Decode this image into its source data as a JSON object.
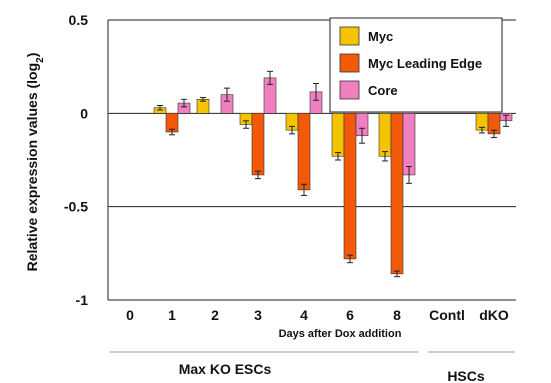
{
  "chart_data": {
    "type": "bar",
    "ylabel": "Relative expression values (log",
    "ylabel_sub": "2",
    "ylabel_close": ")",
    "xlabel": "Days after Dox addition",
    "ylim": [
      -1,
      0.5
    ],
    "yticks": [
      "0.5",
      "0",
      "-0.5",
      "-1"
    ],
    "ytick_values": [
      0.5,
      0,
      -0.5,
      -1
    ],
    "categories": [
      "0",
      "1",
      "2",
      "3",
      "4",
      "6",
      "8",
      "Contl",
      "dKO"
    ],
    "groups": [
      {
        "label": "Max KO ESCs"
      },
      {
        "label": "HSCs"
      }
    ],
    "legend_position": "top-right",
    "series": [
      {
        "name": "Myc",
        "color": "#f5c400",
        "values": [
          0,
          0.03,
          0.075,
          -0.06,
          -0.09,
          -0.23,
          -0.23,
          0,
          -0.09
        ],
        "errors": [
          0,
          0.012,
          0.01,
          0.02,
          0.02,
          0.02,
          0.025,
          0,
          0.015
        ]
      },
      {
        "name": "Myc Leading Edge",
        "color": "#f25a0a",
        "values": [
          0,
          -0.1,
          0,
          -0.33,
          -0.41,
          -0.78,
          -0.86,
          0,
          -0.11
        ],
        "errors": [
          0,
          0.015,
          0.03,
          0.02,
          0.03,
          0.02,
          0.015,
          0,
          0.02
        ]
      },
      {
        "name": "Core",
        "color": "#f07fc0",
        "values": [
          0,
          0.055,
          0.1,
          0.19,
          0.115,
          -0.12,
          -0.33,
          0,
          -0.04
        ],
        "errors": [
          0,
          0.02,
          0.035,
          0.035,
          0.045,
          0.04,
          0.045,
          0,
          0.03
        ]
      }
    ]
  }
}
